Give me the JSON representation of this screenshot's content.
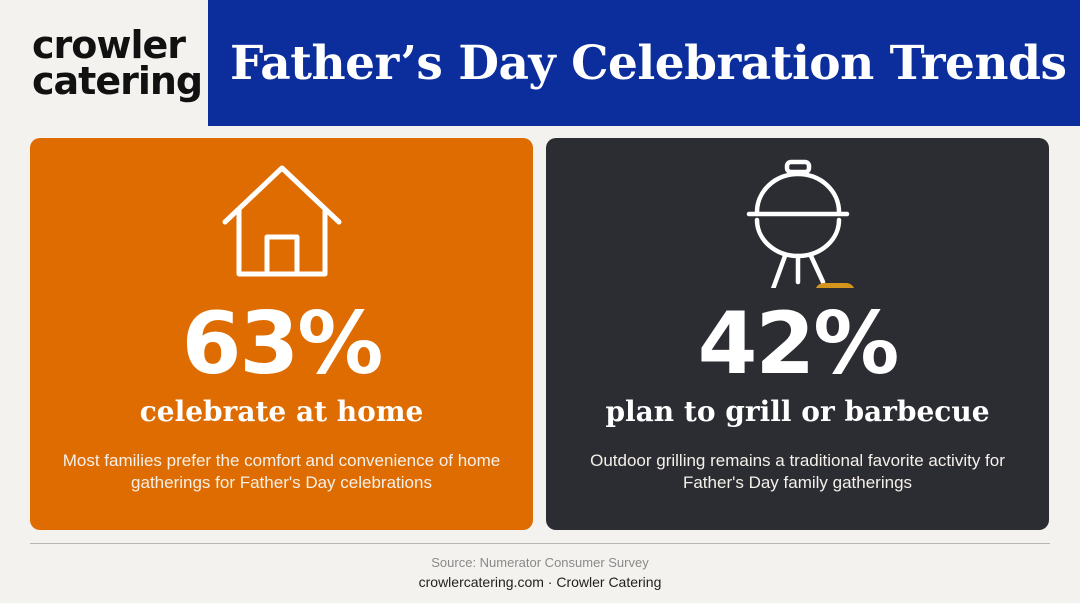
{
  "logo": {
    "line1": "crowler",
    "line2": "catering"
  },
  "title": "Father’s Day Celebration Trends",
  "cards": [
    {
      "icon": "house-icon",
      "percent": "63%",
      "headline": "celebrate at home",
      "description": "Most families prefer the comfort and convenience of home gatherings for Father's Day celebrations",
      "color": "#df6c00"
    },
    {
      "icon": "grill-icon",
      "percent": "42%",
      "headline": "plan to grill or barbecue",
      "description": "Outdoor grilling remains a traditional favorite activity for Father's Day family gatherings",
      "color": "#2b2d33"
    }
  ],
  "footer": {
    "source": "Source: Numerator Consumer Survey",
    "site": "crowlercatering.com · Crowler Catering"
  },
  "colors": {
    "banner": "#0b2e9c",
    "accent_gold": "#d4951f",
    "background": "#f4f2ee"
  }
}
